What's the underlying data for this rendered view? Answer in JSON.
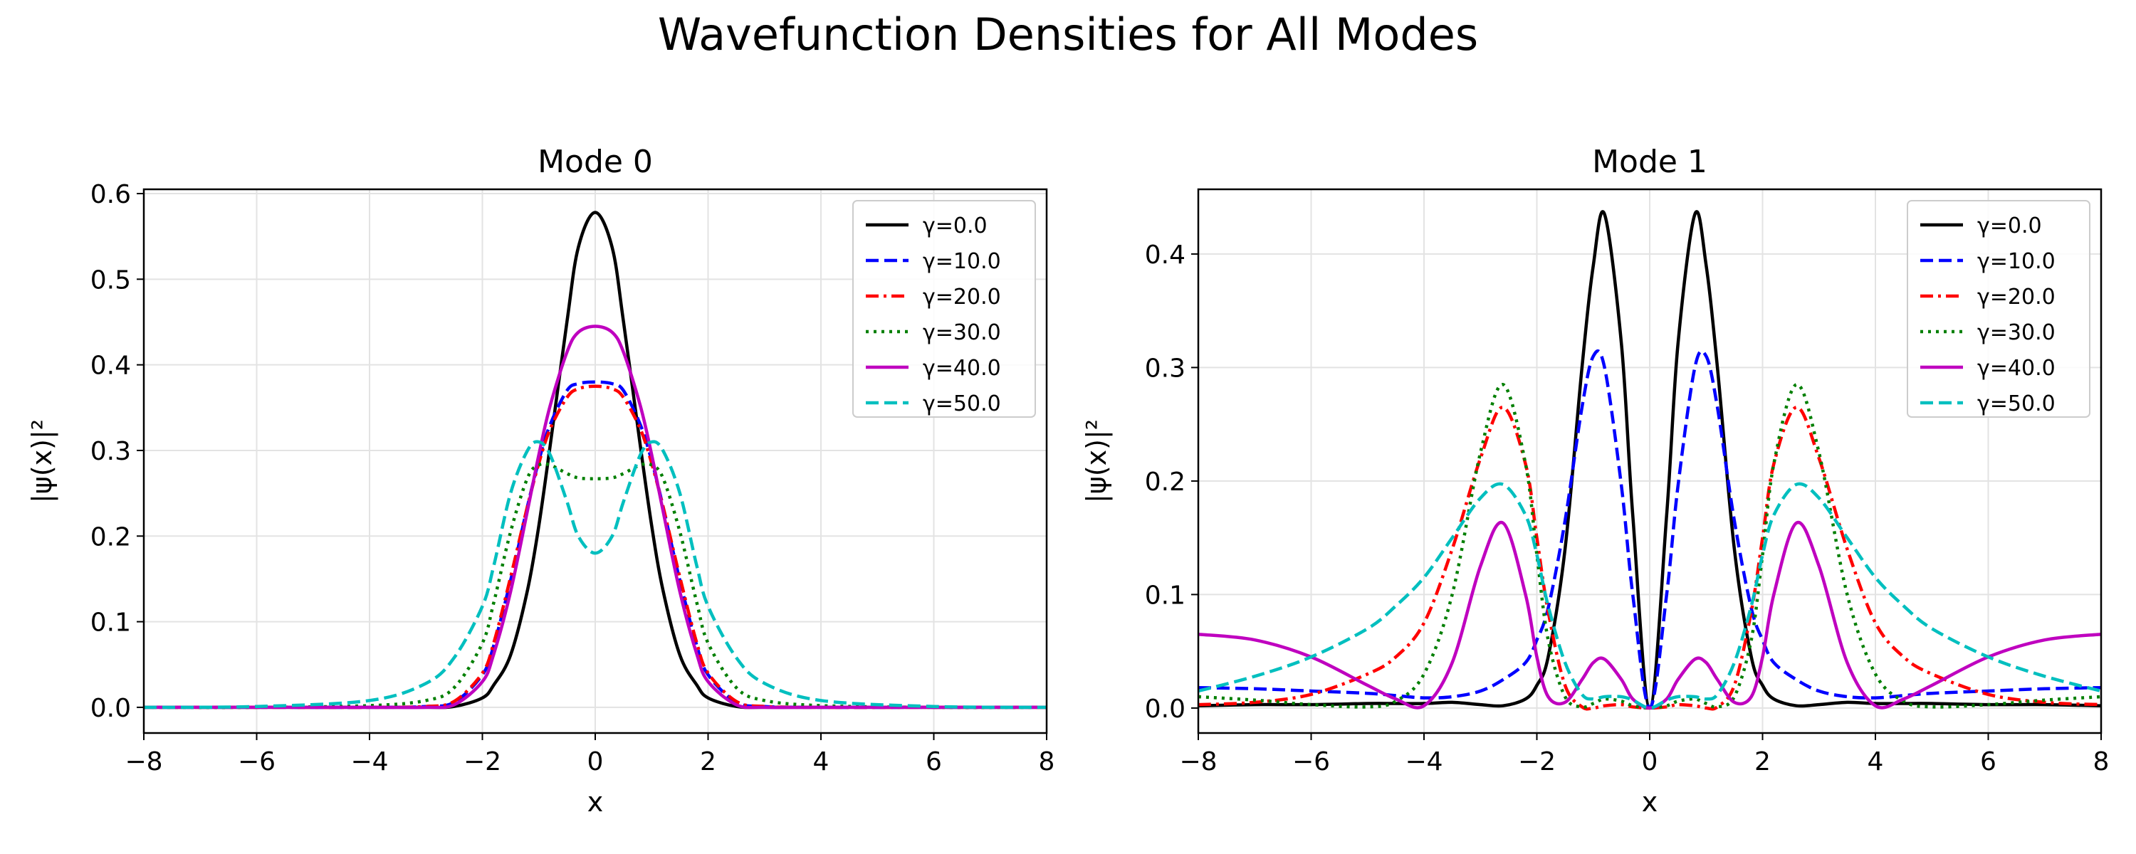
{
  "figure": {
    "title": "Wavefunction Densities for All Modes"
  },
  "chart_data": [
    {
      "type": "line",
      "title": "Mode 0",
      "xlabel": "x",
      "ylabel": "|ψ(x)|²",
      "xlim": [
        -8,
        8
      ],
      "ylim": [
        -0.03,
        0.605
      ],
      "xticks": [
        -8,
        -6,
        -4,
        -2,
        0,
        2,
        4,
        6,
        8
      ],
      "yticks": [
        0.0,
        0.1,
        0.2,
        0.3,
        0.4,
        0.5,
        0.6
      ],
      "ytick_decimals": 1,
      "grid": true,
      "legend_position": "top-right",
      "x": [
        -8,
        -6,
        -4,
        -3,
        -2.5,
        -2,
        -1.8,
        -1.5,
        -1.2,
        -1.0,
        -0.8,
        -0.5,
        -0.3,
        0,
        0.3,
        0.5,
        0.8,
        1.0,
        1.2,
        1.5,
        1.8,
        2.0,
        2.5,
        3,
        4,
        6,
        8
      ],
      "series": [
        {
          "name": "γ=0.0",
          "color": "#000000",
          "dash": "solid",
          "values": [
            0,
            0,
            0,
            0,
            0.001,
            0.011,
            0.026,
            0.061,
            0.137,
            0.212,
            0.305,
            0.451,
            0.537,
            0.578,
            0.537,
            0.451,
            0.305,
            0.212,
            0.137,
            0.061,
            0.026,
            0.011,
            0.001,
            0,
            0,
            0,
            0
          ]
        },
        {
          "name": "γ=10.0",
          "color": "#0000ff",
          "dash": "dashed",
          "values": [
            0,
            0,
            0,
            0.001,
            0.006,
            0.038,
            0.072,
            0.148,
            0.235,
            0.288,
            0.33,
            0.37,
            0.378,
            0.38,
            0.378,
            0.37,
            0.33,
            0.288,
            0.235,
            0.148,
            0.072,
            0.038,
            0.006,
            0.001,
            0,
            0,
            0
          ]
        },
        {
          "name": "γ=20.0",
          "color": "#ff0000",
          "dash": "dashdot",
          "values": [
            0,
            0,
            0,
            0.001,
            0.007,
            0.04,
            0.075,
            0.152,
            0.235,
            0.285,
            0.325,
            0.362,
            0.372,
            0.375,
            0.372,
            0.362,
            0.325,
            0.285,
            0.235,
            0.152,
            0.075,
            0.04,
            0.007,
            0.001,
            0,
            0,
            0
          ]
        },
        {
          "name": "γ=30.0",
          "color": "#007f00",
          "dash": "dotted",
          "values": [
            0,
            0,
            0.002,
            0.008,
            0.023,
            0.075,
            0.122,
            0.205,
            0.268,
            0.283,
            0.283,
            0.273,
            0.268,
            0.267,
            0.268,
            0.273,
            0.283,
            0.283,
            0.268,
            0.205,
            0.122,
            0.075,
            0.023,
            0.008,
            0.002,
            0,
            0
          ]
        },
        {
          "name": "γ=40.0",
          "color": "#bf00bf",
          "dash": "solid",
          "values": [
            0,
            0,
            0,
            0,
            0.003,
            0.03,
            0.062,
            0.135,
            0.23,
            0.295,
            0.352,
            0.415,
            0.438,
            0.445,
            0.438,
            0.415,
            0.352,
            0.295,
            0.23,
            0.135,
            0.062,
            0.03,
            0.003,
            0,
            0,
            0,
            0
          ]
        },
        {
          "name": "γ=50.0",
          "color": "#00bfbf",
          "dash": "dashed",
          "values": [
            0,
            0.001,
            0.008,
            0.028,
            0.058,
            0.118,
            0.165,
            0.25,
            0.3,
            0.31,
            0.295,
            0.24,
            0.2,
            0.18,
            0.2,
            0.24,
            0.295,
            0.31,
            0.3,
            0.25,
            0.165,
            0.118,
            0.058,
            0.028,
            0.008,
            0.001,
            0
          ]
        }
      ]
    },
    {
      "type": "line",
      "title": "Mode 1",
      "xlabel": "x",
      "ylabel": "|ψ(x)|²",
      "xlim": [
        -8,
        8
      ],
      "ylim": [
        -0.022,
        0.457
      ],
      "xticks": [
        -8,
        -6,
        -4,
        -2,
        0,
        2,
        4,
        6,
        8
      ],
      "yticks": [
        0.0,
        0.1,
        0.2,
        0.3,
        0.4
      ],
      "ytick_decimals": 1,
      "grid": true,
      "legend_position": "top-right",
      "x": [
        -8,
        -7,
        -6,
        -5,
        -4.5,
        -4,
        -3.5,
        -3,
        -2.6,
        -2.2,
        -2.0,
        -1.8,
        -1.5,
        -1.2,
        -1.0,
        -0.8,
        -0.5,
        -0.3,
        0,
        0.3,
        0.5,
        0.8,
        1.0,
        1.2,
        1.5,
        1.8,
        2.0,
        2.2,
        2.6,
        3,
        3.5,
        4,
        4.5,
        5,
        6,
        7,
        8
      ],
      "series": [
        {
          "name": "γ=0.0",
          "color": "#000000",
          "dash": "solid",
          "values": [
            0.002,
            0.003,
            0.003,
            0.004,
            0.004,
            0.004,
            0.005,
            0.003,
            0.002,
            0.008,
            0.02,
            0.045,
            0.14,
            0.3,
            0.39,
            0.435,
            0.32,
            0.17,
            0,
            0.17,
            0.32,
            0.435,
            0.39,
            0.3,
            0.14,
            0.045,
            0.02,
            0.008,
            0.002,
            0.003,
            0.005,
            0.004,
            0.004,
            0.004,
            0.003,
            0.003,
            0.002
          ]
        },
        {
          "name": "γ=10.0",
          "color": "#0000ff",
          "dash": "dashed",
          "values": [
            0.018,
            0.017,
            0.015,
            0.013,
            0.011,
            0.009,
            0.01,
            0.015,
            0.025,
            0.04,
            0.06,
            0.088,
            0.165,
            0.265,
            0.31,
            0.3,
            0.195,
            0.1,
            0,
            0.1,
            0.195,
            0.3,
            0.31,
            0.265,
            0.165,
            0.088,
            0.06,
            0.04,
            0.025,
            0.015,
            0.01,
            0.009,
            0.011,
            0.013,
            0.015,
            0.017,
            0.018
          ]
        },
        {
          "name": "γ=20.0",
          "color": "#ff0000",
          "dash": "dashdot",
          "values": [
            0.003,
            0.005,
            0.012,
            0.03,
            0.045,
            0.075,
            0.14,
            0.22,
            0.265,
            0.215,
            0.15,
            0.085,
            0.02,
            0.001,
            0.0,
            0.002,
            0.003,
            0.001,
            0,
            0.001,
            0.003,
            0.002,
            0.0,
            0.001,
            0.02,
            0.085,
            0.15,
            0.215,
            0.265,
            0.22,
            0.14,
            0.075,
            0.045,
            0.03,
            0.012,
            0.005,
            0.003
          ]
        },
        {
          "name": "γ=30.0",
          "color": "#007f00",
          "dash": "dotted",
          "values": [
            0.01,
            0.007,
            0.003,
            0.001,
            0.006,
            0.03,
            0.1,
            0.225,
            0.285,
            0.215,
            0.135,
            0.06,
            0.01,
            0.001,
            0.004,
            0.008,
            0.006,
            0.002,
            0,
            0.002,
            0.006,
            0.008,
            0.004,
            0.001,
            0.01,
            0.06,
            0.135,
            0.215,
            0.285,
            0.225,
            0.1,
            0.03,
            0.006,
            0.001,
            0.003,
            0.007,
            0.01
          ]
        },
        {
          "name": "γ=40.0",
          "color": "#bf00bf",
          "dash": "solid",
          "values": [
            0.065,
            0.06,
            0.045,
            0.02,
            0.008,
            0.002,
            0.04,
            0.125,
            0.163,
            0.1,
            0.045,
            0.01,
            0.005,
            0.025,
            0.04,
            0.043,
            0.025,
            0.008,
            0,
            0.008,
            0.025,
            0.043,
            0.04,
            0.025,
            0.005,
            0.01,
            0.045,
            0.1,
            0.163,
            0.125,
            0.04,
            0.002,
            0.008,
            0.02,
            0.045,
            0.06,
            0.065
          ]
        },
        {
          "name": "γ=50.0",
          "color": "#00bfbf",
          "dash": "dashed",
          "values": [
            0.015,
            0.028,
            0.045,
            0.07,
            0.09,
            0.115,
            0.15,
            0.185,
            0.197,
            0.17,
            0.135,
            0.09,
            0.04,
            0.012,
            0.008,
            0.01,
            0.01,
            0.007,
            0,
            0.007,
            0.01,
            0.01,
            0.008,
            0.012,
            0.04,
            0.09,
            0.135,
            0.17,
            0.197,
            0.185,
            0.15,
            0.115,
            0.09,
            0.07,
            0.045,
            0.028,
            0.015
          ]
        }
      ]
    }
  ]
}
